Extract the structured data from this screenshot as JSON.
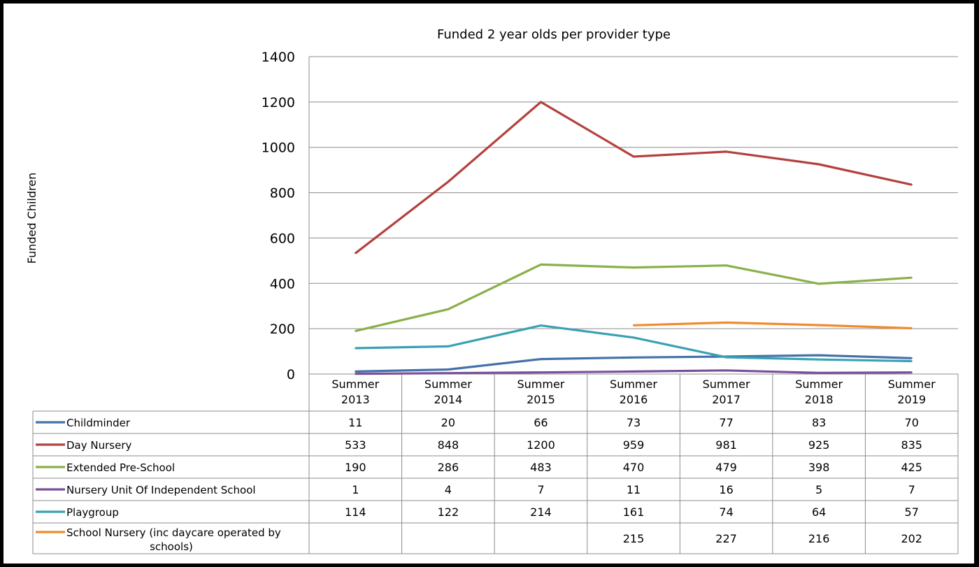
{
  "chart_data": {
    "type": "line",
    "title": "Funded 2 year olds per provider type",
    "ylabel": "Funded Children",
    "xlabel": "",
    "ylim": [
      0,
      1400
    ],
    "yticks": [
      0,
      200,
      400,
      600,
      800,
      1000,
      1200,
      1400
    ],
    "grid": true,
    "legend": "data-table-below",
    "categories": [
      [
        "Summer",
        "2013"
      ],
      [
        "Summer",
        "2014"
      ],
      [
        "Summer",
        "2015"
      ],
      [
        "Summer",
        "2016"
      ],
      [
        "Summer",
        "2017"
      ],
      [
        "Summer",
        "2018"
      ],
      [
        "Summer",
        "2019"
      ]
    ],
    "series": [
      {
        "name": "Childminder",
        "color": "#4472a8",
        "values": [
          11,
          20,
          66,
          73,
          77,
          83,
          70
        ]
      },
      {
        "name": "Day Nursery",
        "color": "#b5403d",
        "values": [
          533,
          848,
          1200,
          959,
          981,
          925,
          835
        ]
      },
      {
        "name": "Extended Pre-School",
        "color": "#8ab04a",
        "values": [
          190,
          286,
          483,
          470,
          479,
          398,
          425
        ]
      },
      {
        "name": "Nursery Unit Of Independent School",
        "color": "#7a4f9a",
        "values": [
          1,
          4,
          7,
          11,
          16,
          5,
          7
        ]
      },
      {
        "name": "Playgroup",
        "color": "#3aa1b5",
        "values": [
          114,
          122,
          214,
          161,
          74,
          64,
          57
        ]
      },
      {
        "name": [
          "School Nursery (inc daycare operated by",
          "schools)"
        ],
        "color": "#f28a2e",
        "values": [
          null,
          null,
          null,
          215,
          227,
          216,
          202
        ]
      }
    ]
  }
}
